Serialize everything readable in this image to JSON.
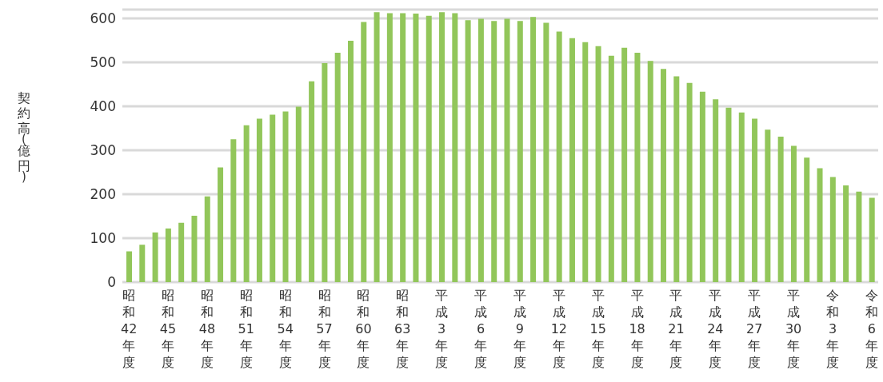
{
  "chart_data": {
    "type": "bar",
    "ylabel": "契約高(億円)",
    "categories": [
      "昭和42年度",
      null,
      null,
      "昭和45年度",
      null,
      null,
      "昭和48年度",
      null,
      null,
      "昭和51年度",
      null,
      null,
      "昭和54年度",
      null,
      null,
      "昭和57年度",
      null,
      null,
      "昭和60年度",
      null,
      null,
      "昭和63年度",
      null,
      null,
      "平成3年度",
      null,
      null,
      "平成6年度",
      null,
      null,
      "平成9年度",
      null,
      null,
      "平成12年度",
      null,
      null,
      "平成15年度",
      null,
      null,
      "平成18年度",
      null,
      null,
      "平成21年度",
      null,
      null,
      "平成24年度",
      null,
      null,
      "平成27年度",
      null,
      null,
      "平成30年度",
      null,
      null,
      "令和3年度",
      null,
      null,
      "令和6年度"
    ],
    "values": [
      70,
      85,
      113,
      122,
      135,
      151,
      195,
      261,
      325,
      357,
      372,
      381,
      388,
      399,
      457,
      498,
      522,
      549,
      592,
      614,
      612,
      612,
      611,
      606,
      614,
      612,
      596,
      599,
      594,
      599,
      594,
      603,
      590,
      570,
      555,
      546,
      537,
      515,
      533,
      522,
      503,
      485,
      468,
      453,
      433,
      416,
      397,
      386,
      372,
      347,
      331,
      310,
      283,
      259,
      239,
      220,
      206,
      192
    ],
    "color": "#92c65a",
    "ylim": [
      0,
      620
    ],
    "yticks": [
      0,
      100,
      200,
      300,
      400,
      500,
      600
    ],
    "grid": "y",
    "legend": false
  }
}
